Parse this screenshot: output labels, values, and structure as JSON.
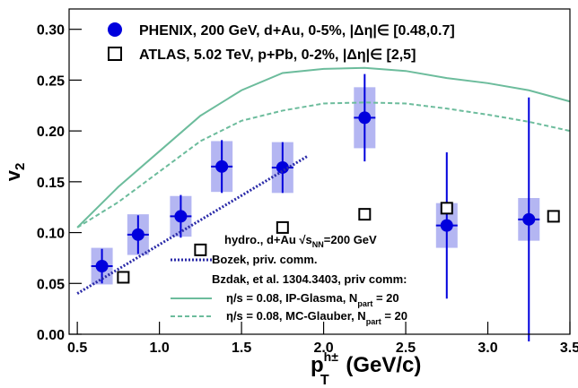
{
  "chart_data": {
    "type": "scatter",
    "x_label": {
      "main": "p",
      "sup": "h±",
      "sub": "T",
      "tail": " (GeV/c)"
    },
    "y_label": {
      "main": "v",
      "sub": "2"
    },
    "xlim": [
      0.45,
      3.5
    ],
    "ylim": [
      0,
      0.32
    ],
    "xticks": [
      0.5,
      {
        "value": 1.0,
        "label": "1.0"
      },
      1.5,
      {
        "value": 2.0,
        "label": "2.0"
      },
      2.5,
      {
        "value": 3.0,
        "label": "3.0"
      },
      3.5
    ],
    "yticks": [
      {
        "value": 0,
        "label": "0.00"
      },
      0.05,
      {
        "value": 0.1,
        "label": "0.10"
      },
      0.15,
      {
        "value": 0.2,
        "label": "0.20"
      },
      0.25,
      {
        "value": 0.3,
        "label": "0.30"
      }
    ],
    "model_legend_header": {
      "main": "hydro., d+Au √s",
      "sub": "NN",
      "tail": "=200 GeV"
    },
    "model_legend_note": "Bzdak, et al. 1304.3403, priv comm:",
    "series": [
      {
        "name": "PHENIX, 200 GeV, d+Au, 0-5%, |Δη|∈ [0.48,0.7]",
        "kind": "marker",
        "marker": "circle",
        "color": "#0000dd",
        "sys_color": "#b4b6f2",
        "x": [
          0.65,
          0.87,
          1.13,
          1.38,
          1.75,
          2.25,
          2.75,
          3.25
        ],
        "values": [
          0.067,
          0.098,
          0.116,
          0.165,
          0.164,
          0.213,
          0.107,
          0.113
        ],
        "errors": [
          0.017,
          0.019,
          0.021,
          0.026,
          0.025,
          0.043,
          0.072,
          0.12
        ],
        "sys_errors": [
          0.018,
          0.02,
          0.02,
          0.025,
          0.025,
          0.03,
          0.022,
          0.021
        ]
      },
      {
        "name": "ATLAS, 5.02 TeV, p+Pb, 0-2%, |Δη|∈ [2,5]",
        "kind": "marker",
        "marker": "open-square",
        "color": "#000000",
        "x": [
          0.78,
          1.25,
          1.75,
          2.25,
          2.75,
          3.4
        ],
        "values": [
          0.056,
          0.083,
          0.105,
          0.118,
          0.124,
          0.116
        ]
      },
      {
        "name": "Bozek, priv. comm.",
        "kind": "line",
        "dash": "dotted",
        "color": "#2a2aa8",
        "x": [
          0.5,
          1.9
        ],
        "values": [
          0.04,
          0.175
        ]
      },
      {
        "name": "η/s = 0.08, IP-Glasma, N",
        "name_sub": "part",
        "name_tail": " = 20",
        "kind": "line",
        "dash": "solid",
        "color": "#6cbc9c",
        "x": [
          0.5,
          0.75,
          1.0,
          1.25,
          1.5,
          1.75,
          2.0,
          2.25,
          2.5,
          2.75,
          3.0,
          3.25,
          3.5
        ],
        "values": [
          0.105,
          0.145,
          0.18,
          0.215,
          0.24,
          0.257,
          0.261,
          0.262,
          0.259,
          0.252,
          0.247,
          0.24,
          0.229
        ]
      },
      {
        "name": "η/s = 0.08, MC-Glauber, N",
        "name_sub": "part",
        "name_tail": " = 20",
        "kind": "line",
        "dash": "dashed",
        "color": "#6cbc9c",
        "x": [
          0.5,
          0.75,
          1.0,
          1.25,
          1.5,
          1.75,
          2.0,
          2.25,
          2.5,
          2.75,
          3.0,
          3.25,
          3.5
        ],
        "values": [
          0.105,
          0.13,
          0.16,
          0.19,
          0.21,
          0.22,
          0.227,
          0.228,
          0.227,
          0.222,
          0.216,
          0.209,
          0.2
        ]
      }
    ]
  }
}
